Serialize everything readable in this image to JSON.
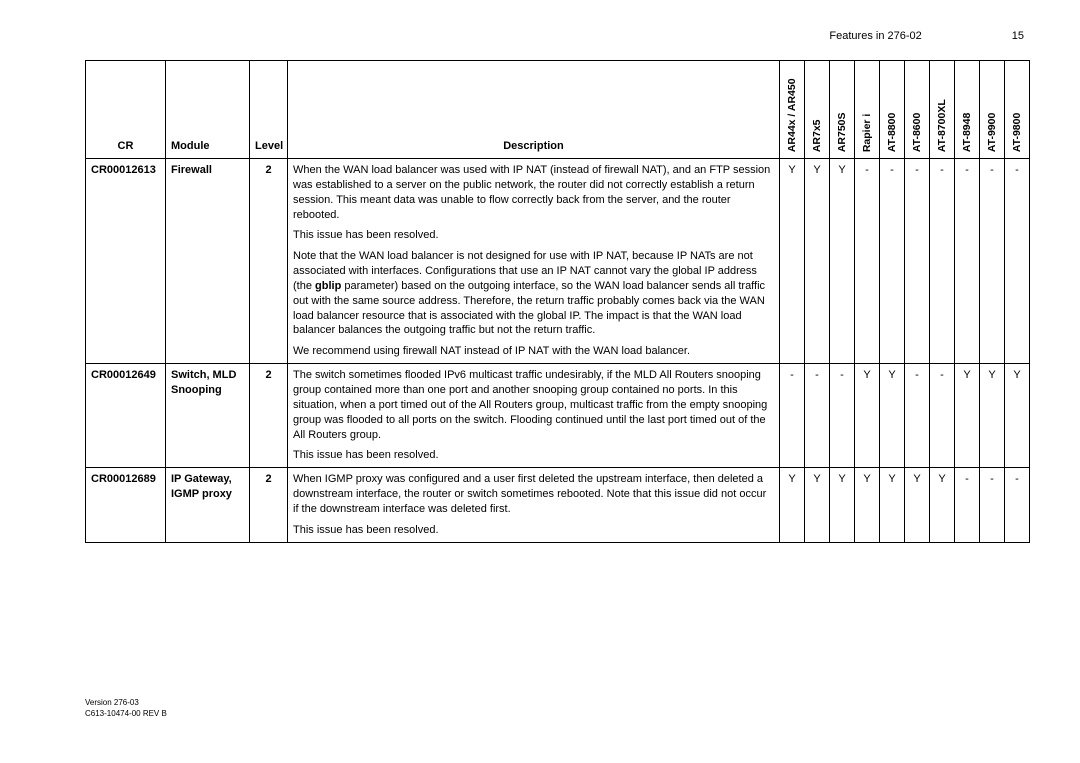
{
  "header": {
    "title": "Features in 276-02",
    "page_no": "15"
  },
  "footer": {
    "version": "Version 276-03",
    "docref": "C613-10474-00 REV B"
  },
  "columns": {
    "cr": "CR",
    "module": "Module",
    "level": "Level",
    "description": "Description",
    "platforms": [
      "AR44x / AR450",
      "AR7x5",
      "AR750S",
      "Rapier i",
      "AT-8800",
      "AT-8600",
      "AT-8700XL",
      "AT-8948",
      "AT-9900",
      "AT-9800"
    ]
  },
  "rows": [
    {
      "cr": "CR00012613",
      "module": "Firewall",
      "level": "2",
      "desc": [
        "When the WAN load balancer was used with IP NAT (instead of firewall NAT), and an FTP session was established to a server on the public network, the router did not correctly establish a return session. This meant data was unable to flow correctly back from the server, and the router rebooted.",
        "This issue has been resolved.",
        "Note that the WAN load balancer is not designed for use with IP NAT, because IP NATs are not associated with interfaces. Configurations that use an IP NAT cannot vary the global IP address (the <b>gblip</b> parameter) based on the outgoing interface, so the WAN load balancer sends all traffic out with the same source address. Therefore, the return traffic probably comes back via the WAN load balancer resource that is associated with the global IP. The impact is that the WAN load balancer balances the outgoing traffic but not the return traffic.",
        "We recommend using firewall NAT instead of IP NAT with the WAN load balancer."
      ],
      "plat": [
        "Y",
        "Y",
        "Y",
        "-",
        "-",
        "-",
        "-",
        "-",
        "-",
        "-"
      ]
    },
    {
      "cr": "CR00012649",
      "module": "Switch, MLD Snooping",
      "level": "2",
      "desc": [
        "The switch sometimes flooded IPv6 multicast traffic undesirably, if the MLD All Routers snooping group contained more than one port and another snooping group contained no ports. In this situation, when a port timed out of the All Routers group, multicast traffic from the empty snooping group was flooded to all ports on the switch. Flooding continued until the last port timed out of the All Routers group.",
        "This issue has been resolved."
      ],
      "plat": [
        "-",
        "-",
        "-",
        "Y",
        "Y",
        "-",
        "-",
        "Y",
        "Y",
        "Y"
      ]
    },
    {
      "cr": "CR00012689",
      "module": "IP Gateway, IGMP proxy",
      "level": "2",
      "desc": [
        "When IGMP proxy was configured and a user first deleted the upstream interface, then deleted a downstream interface, the router or switch sometimes rebooted. Note that this issue did not occur if the downstream interface was deleted first.",
        "This issue has been resolved."
      ],
      "plat": [
        "Y",
        "Y",
        "Y",
        "Y",
        "Y",
        "Y",
        "Y",
        "-",
        "-",
        "-"
      ]
    }
  ]
}
